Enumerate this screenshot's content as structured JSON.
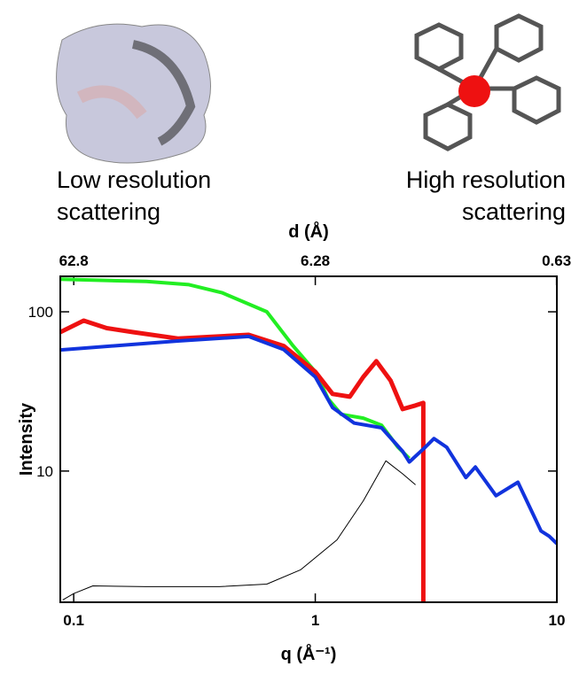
{
  "chart_data": {
    "type": "line",
    "annotations": [
      "Low resolution",
      "scattering",
      "High resolution",
      "scattering"
    ],
    "xlabel": "q (Å⁻¹)",
    "ylabel": "Intensity",
    "x2label": "d (Å)",
    "xscale": "log",
    "yscale": "log",
    "x2scale": "log",
    "xlim": [
      0.088,
      10
    ],
    "xticks": [
      0.1,
      1,
      10
    ],
    "x2lim": [
      71.4,
      0.628
    ],
    "x2ticks": [
      62.8,
      6.28,
      0.63
    ],
    "ylim": [
      1.5,
      167
    ],
    "yticks": [
      10,
      100
    ],
    "series": [
      {
        "name": "green",
        "color": "#22ee22",
        "width": 4,
        "x": [
          0.088,
          0.2,
          0.3,
          0.41,
          0.63,
          0.81,
          1.0,
          1.13,
          1.28,
          1.58,
          1.88,
          2.2,
          2.45
        ],
        "values": [
          160,
          155,
          148,
          132,
          100,
          61,
          42,
          28.5,
          22.7,
          21.5,
          19.4,
          14.1,
          12
        ]
      },
      {
        "name": "red",
        "color": "#ee1111",
        "width": 5,
        "x": [
          0.088,
          0.11,
          0.137,
          0.176,
          0.27,
          0.53,
          0.74,
          1.0,
          1.18,
          1.39,
          1.58,
          1.79,
          2.05,
          2.3,
          2.6,
          2.8,
          2.8
        ],
        "values": [
          74.5,
          88,
          79,
          74.5,
          68,
          71.7,
          61,
          42,
          30.5,
          29.3,
          39,
          49,
          37,
          24.5,
          25.8,
          26.8,
          1.5
        ]
      },
      {
        "name": "blue",
        "color": "#1133dd",
        "width": 4,
        "x": [
          0.088,
          0.27,
          0.53,
          0.74,
          1.0,
          1.18,
          1.45,
          1.88,
          2.3,
          2.45,
          2.85,
          3.1,
          3.5,
          4.2,
          4.6,
          5.6,
          6.9,
          8.6,
          9.3,
          10
        ],
        "values": [
          57.6,
          65.6,
          70,
          58,
          39,
          25,
          20,
          18.7,
          13.3,
          11.4,
          14.1,
          16,
          14.1,
          9.1,
          10.6,
          7,
          8.5,
          4.2,
          3.9,
          3.5
        ]
      },
      {
        "name": "black",
        "color": "#000000",
        "width": 1,
        "x": [
          0.09,
          0.1,
          0.12,
          0.2,
          0.4,
          0.63,
          0.87,
          1.23,
          1.58,
          1.96,
          2.3,
          2.6
        ],
        "values": [
          1.55,
          1.7,
          1.9,
          1.88,
          1.88,
          1.95,
          2.4,
          3.7,
          6.5,
          11.6,
          9.6,
          8.2
        ]
      }
    ]
  }
}
